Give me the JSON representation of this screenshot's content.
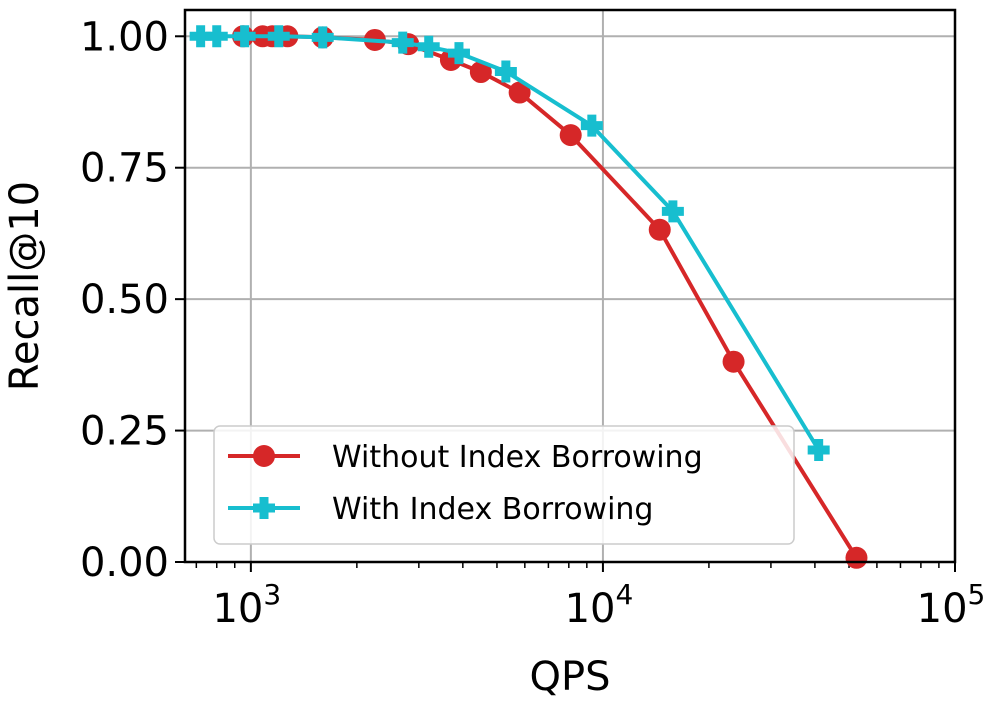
{
  "chart_data": {
    "type": "line",
    "xlabel": "QPS",
    "ylabel": "Recall@10",
    "xscale": "log",
    "xlim": [
      650,
      100000
    ],
    "ylim": [
      0,
      1.05
    ],
    "xticks": [
      {
        "value": 1000,
        "base": "10",
        "exp": "3"
      },
      {
        "value": 10000,
        "base": "10",
        "exp": "4"
      },
      {
        "value": 100000,
        "base": "10",
        "exp": "5"
      }
    ],
    "yticks": [
      {
        "value": 0.0,
        "label": "0.00"
      },
      {
        "value": 0.25,
        "label": "0.25"
      },
      {
        "value": 0.5,
        "label": "0.50"
      },
      {
        "value": 0.75,
        "label": "0.75"
      },
      {
        "value": 1.0,
        "label": "1.00"
      }
    ],
    "grid": true,
    "legend_position": "lower-left",
    "series": [
      {
        "name": "Without Index Borrowing",
        "color": "#d62728",
        "marker": "circle",
        "points": [
          {
            "x": 950,
            "y": 1.0
          },
          {
            "x": 1080,
            "y": 1.0
          },
          {
            "x": 1150,
            "y": 1.0
          },
          {
            "x": 1270,
            "y": 1.0
          },
          {
            "x": 1600,
            "y": 0.998
          },
          {
            "x": 2250,
            "y": 0.993
          },
          {
            "x": 2800,
            "y": 0.985
          },
          {
            "x": 3700,
            "y": 0.955
          },
          {
            "x": 4500,
            "y": 0.932
          },
          {
            "x": 5800,
            "y": 0.893
          },
          {
            "x": 8100,
            "y": 0.812
          },
          {
            "x": 14500,
            "y": 0.632
          },
          {
            "x": 23500,
            "y": 0.381
          },
          {
            "x": 52500,
            "y": 0.008
          }
        ]
      },
      {
        "name": "With Index Borrowing",
        "color": "#17becf",
        "marker": "plus",
        "points": [
          {
            "x": 720,
            "y": 1.0
          },
          {
            "x": 800,
            "y": 1.0
          },
          {
            "x": 960,
            "y": 1.0
          },
          {
            "x": 1200,
            "y": 1.0
          },
          {
            "x": 1600,
            "y": 0.998
          },
          {
            "x": 2700,
            "y": 0.988
          },
          {
            "x": 3200,
            "y": 0.98
          },
          {
            "x": 3900,
            "y": 0.968
          },
          {
            "x": 5300,
            "y": 0.933
          },
          {
            "x": 9300,
            "y": 0.83
          },
          {
            "x": 15800,
            "y": 0.667
          },
          {
            "x": 41000,
            "y": 0.213
          }
        ]
      }
    ]
  }
}
